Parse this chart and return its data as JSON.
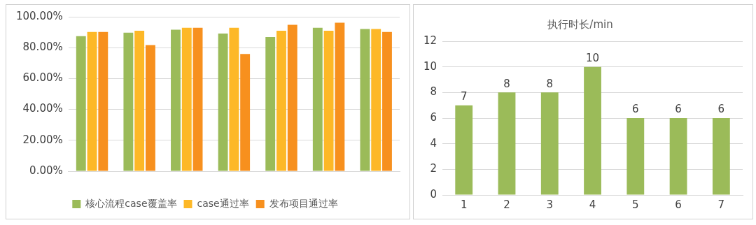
{
  "chart_data": [
    {
      "type": "bar",
      "categories": [
        null,
        null,
        null,
        null,
        null,
        null,
        null
      ],
      "series": [
        {
          "name": "核心流程case覆盖率",
          "color": "#9bbb59",
          "values": [
            87.4,
            89.7,
            91.6,
            89.1,
            86.9,
            92.9,
            92.1
          ]
        },
        {
          "name": "case通过率",
          "color": "#fdb827",
          "values": [
            90.2,
            91.0,
            92.9,
            92.9,
            91.0,
            91.0,
            92.1
          ]
        },
        {
          "name": "发布项目通过率",
          "color": "#f7901e",
          "values": [
            90.2,
            81.7,
            92.9,
            75.9,
            94.8,
            96.2,
            90.2
          ]
        }
      ],
      "ylim": [
        0,
        100
      ],
      "yticks": [
        {
          "value": 0,
          "label": "0.00%"
        },
        {
          "value": 20,
          "label": "20.00%"
        },
        {
          "value": 40,
          "label": "40.00%"
        },
        {
          "value": 60,
          "label": "60.00%"
        },
        {
          "value": 80,
          "label": "80.00%"
        },
        {
          "value": 100,
          "label": "100.00%"
        }
      ],
      "grid": "y",
      "legend": "bottom"
    },
    {
      "type": "bar",
      "title": "执行时长/min",
      "categories": [
        "1",
        "2",
        "3",
        "4",
        "5",
        "6",
        "7"
      ],
      "values": [
        7,
        8,
        8,
        10,
        6,
        6,
        6
      ],
      "color": "#9bbb59",
      "ylim": [
        0,
        12
      ],
      "yticks": [
        0,
        2,
        4,
        6,
        8,
        10,
        12
      ],
      "grid": "y",
      "data_labels": true
    }
  ]
}
